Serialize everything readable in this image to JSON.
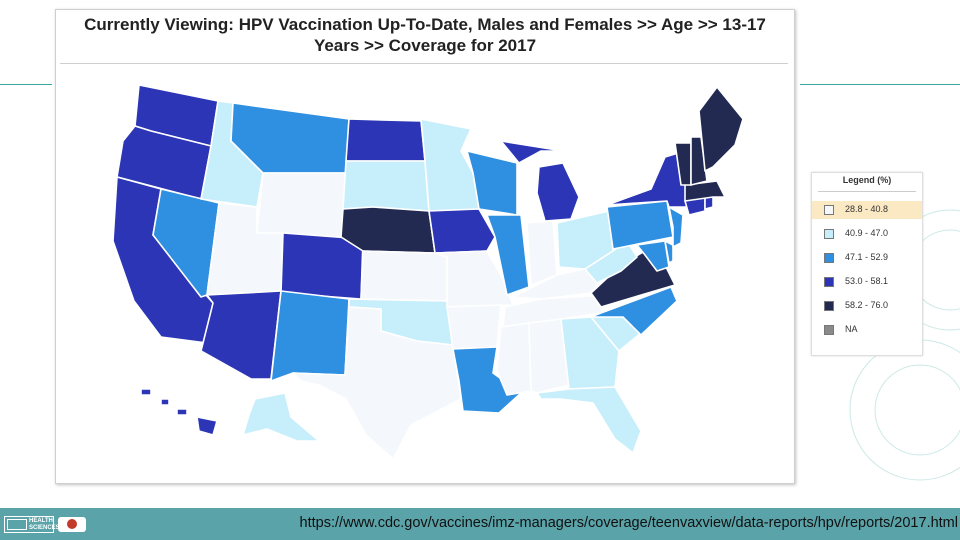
{
  "title": {
    "line1": "Currently Viewing:  HPV Vaccination Up-To-Date, Males and Females  >>  Age  >>  13-17",
    "line2": "Years  >>  Coverage for 2017"
  },
  "legend": {
    "title": "Legend (%)",
    "items": [
      {
        "label": "28.8 - 40.8",
        "color": "#f4f7fb"
      },
      {
        "label": "40.9 - 47.0",
        "color": "#c7eefb"
      },
      {
        "label": "47.1 - 52.9",
        "color": "#2f8fe0"
      },
      {
        "label": "53.0 - 58.1",
        "color": "#2b35b5"
      },
      {
        "label": "58.2 - 76.0",
        "color": "#222a52"
      },
      {
        "label": "NA",
        "color": "#8a8a8a"
      }
    ]
  },
  "footer": {
    "url": "https://www.cdc.gov/vaccines/imz-managers/coverage/teenvaxview/data-reports/hpv/reports/2017.html",
    "logo_text": "HEALTH SCIENCES"
  },
  "colors": {
    "footer_band": "#5aa3a9",
    "state_border": "#ffffff",
    "accent_rule": "#3aa6a0"
  }
}
